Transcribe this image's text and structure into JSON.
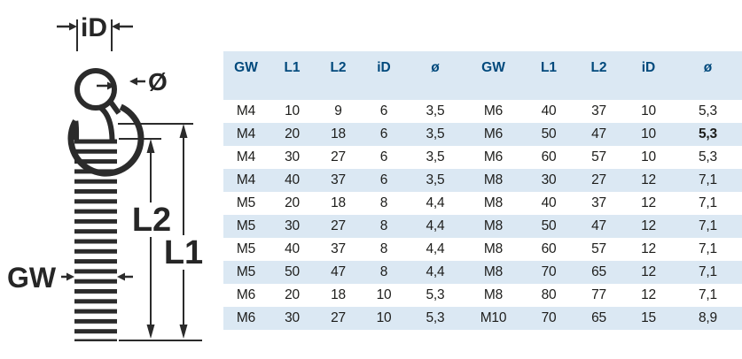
{
  "diagram": {
    "labels": {
      "inner_diameter": "iD",
      "wire_diameter": "Ø",
      "thread_length": "L2",
      "shank_length": "L1",
      "thread": "GW"
    },
    "line_color": "#2b2b2b"
  },
  "table": {
    "columns": [
      "GW",
      "L1",
      "L2",
      "iD",
      "ø"
    ],
    "left_rows": [
      [
        "M4",
        "10",
        "9",
        "6",
        "3,5"
      ],
      [
        "M4",
        "20",
        "18",
        "6",
        "3,5"
      ],
      [
        "M4",
        "30",
        "27",
        "6",
        "3,5"
      ],
      [
        "M4",
        "40",
        "37",
        "6",
        "3,5"
      ],
      [
        "M5",
        "20",
        "18",
        "8",
        "4,4"
      ],
      [
        "M5",
        "30",
        "27",
        "8",
        "4,4"
      ],
      [
        "M5",
        "40",
        "37",
        "8",
        "4,4"
      ],
      [
        "M5",
        "50",
        "47",
        "8",
        "4,4"
      ],
      [
        "M6",
        "20",
        "18",
        "10",
        "5,3"
      ],
      [
        "M6",
        "30",
        "27",
        "10",
        "5,3"
      ]
    ],
    "right_rows": [
      [
        "M6",
        "40",
        "37",
        "10",
        "5,3"
      ],
      [
        "M6",
        "50",
        "47",
        "10",
        "5,3"
      ],
      [
        "M6",
        "60",
        "57",
        "10",
        "5,3"
      ],
      [
        "M8",
        "30",
        "27",
        "12",
        "7,1"
      ],
      [
        "M8",
        "40",
        "37",
        "12",
        "7,1"
      ],
      [
        "M8",
        "50",
        "47",
        "12",
        "7,1"
      ],
      [
        "M8",
        "60",
        "57",
        "12",
        "7,1"
      ],
      [
        "M8",
        "70",
        "65",
        "12",
        "7,1"
      ],
      [
        "M8",
        "80",
        "77",
        "12",
        "7,1"
      ],
      [
        "M10",
        "70",
        "65",
        "15",
        "8,9"
      ]
    ],
    "bold_cell": {
      "side": "right",
      "row": 1,
      "col": 4
    },
    "colors": {
      "header_text": "#00497c",
      "stripe": "#dbe8f3",
      "text": "#1d1d1b"
    }
  }
}
